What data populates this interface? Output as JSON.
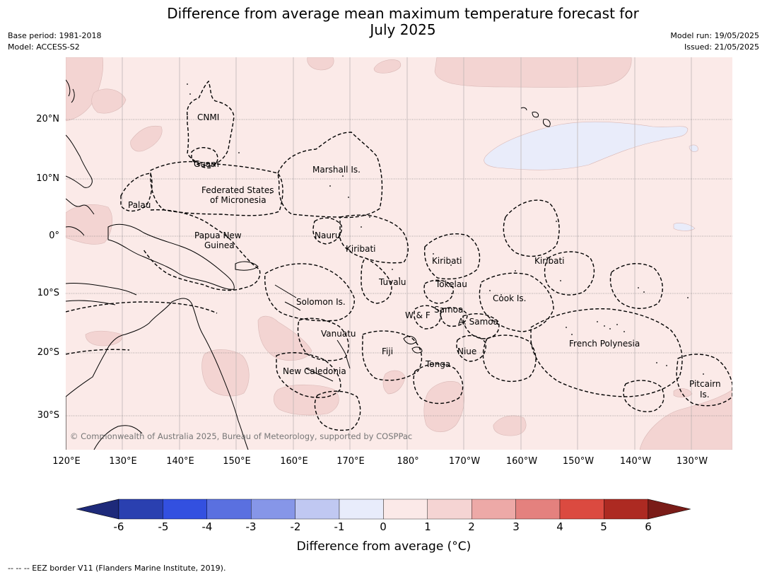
{
  "title_line1": "Difference from average mean maximum temperature forecast for",
  "title_line2": "July 2025",
  "base_period": "Base period: 1981-2018",
  "model": "Model: ACCESS-S2",
  "model_run": "Model run: 19/05/2025",
  "issued": "Issued: 21/05/2025",
  "lat_labels": [
    "20°N",
    "10°N",
    "0°",
    "10°S",
    "20°S",
    "30°S"
  ],
  "lon_labels": [
    "120°E",
    "130°E",
    "140°E",
    "150°E",
    "160°E",
    "170°E",
    "180°",
    "170°W",
    "160°W",
    "150°W",
    "140°W",
    "130°W"
  ],
  "places": {
    "cnmi": "CNMI",
    "guam": "Guam",
    "marshall": "Marshall Is.",
    "fsm_1": "Federated States",
    "fsm_2": "of Micronesia",
    "palau": "Palau",
    "png_1": "Papua New",
    "png_2": "Guinea",
    "nauru": "Nauru",
    "kiribati_w": "Kiribati",
    "kiribati_c": "Kiribati",
    "kiribati_e": "Kiribati",
    "tuvalu": "Tuvalu",
    "tokelau": "Tokelau",
    "solomon": "Solomon Is.",
    "wf": "W & F",
    "samoa": "Samoa",
    "asamoa": "A. Samoa",
    "cook": "Cook Is.",
    "vanuatu": "Vanuatu",
    "fiji": "Fiji",
    "niue": "Niue",
    "tonga": "Tonga",
    "french_polynesia": "French Polynesia",
    "new_caledonia": "New Caledonia",
    "pitcairn_1": "Pitcairn",
    "pitcairn_2": "Is."
  },
  "credit": "© Commonwealth of Australia 2025, Bureau of Meteorology, supported by COSPPac",
  "colorbar": {
    "ticks": [
      "-6",
      "-5",
      "-4",
      "-3",
      "-2",
      "-1",
      "0",
      "1",
      "2",
      "3",
      "4",
      "5",
      "6"
    ],
    "label": "Difference from average (°C)",
    "colors": [
      "#1e2a7a",
      "#2a40b0",
      "#3350e0",
      "#5a70e0",
      "#8696e8",
      "#c0c8f2",
      "#e8ecfb",
      "#fbe9e8",
      "#f5d4d3",
      "#eda9a7",
      "#e4817e",
      "#db4a40",
      "#ad2a22",
      "#7a1c18"
    ]
  },
  "eez_note": "--  --  -- EEZ border V11 (Flanders Marine Institute, 2019)."
}
